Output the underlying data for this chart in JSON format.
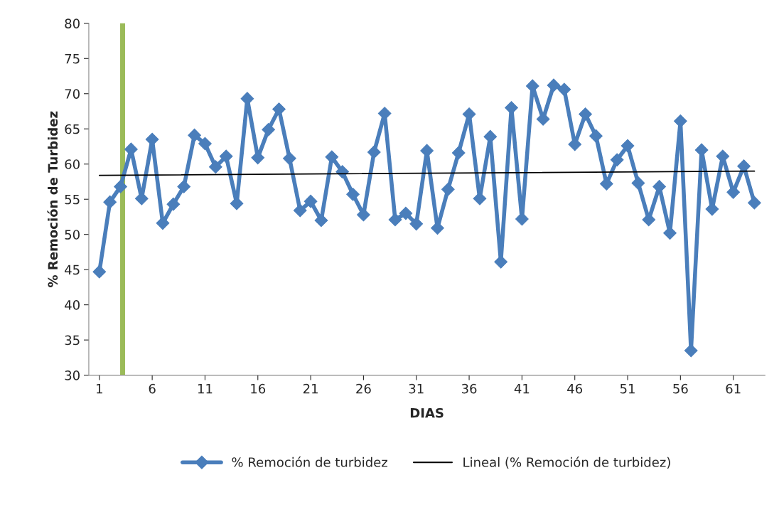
{
  "chart_data": {
    "type": "line",
    "xlabel": "DIAS",
    "ylabel": "% Remoción de Turbidez",
    "x": [
      1,
      2,
      3,
      4,
      5,
      6,
      7,
      8,
      9,
      10,
      11,
      12,
      13,
      14,
      15,
      16,
      17,
      18,
      19,
      20,
      21,
      22,
      23,
      24,
      25,
      26,
      27,
      28,
      29,
      30,
      31,
      32,
      33,
      34,
      35,
      36,
      37,
      38,
      39,
      40,
      41,
      42,
      43,
      44,
      45,
      46,
      47,
      48,
      49,
      50,
      51,
      52,
      53,
      54,
      55,
      56,
      57,
      58,
      59,
      60,
      61,
      62,
      63
    ],
    "series": [
      {
        "name": "% Remoción de turbidez",
        "color": "#4a7ebb",
        "marker": "diamond",
        "values": [
          44.7,
          54.6,
          56.8,
          62.1,
          55.1,
          63.5,
          51.6,
          54.3,
          56.8,
          64.1,
          62.9,
          59.6,
          61.1,
          54.4,
          69.3,
          60.9,
          64.9,
          67.8,
          60.8,
          53.4,
          54.7,
          52.0,
          61.0,
          58.9,
          55.7,
          52.8,
          61.7,
          67.2,
          52.1,
          53.0,
          51.5,
          61.9,
          50.9,
          56.4,
          61.6,
          67.1,
          55.1,
          63.9,
          46.1,
          68.0,
          52.2,
          71.1,
          66.4,
          71.2,
          70.6,
          62.8,
          67.1,
          64.0,
          57.2,
          60.6,
          62.6,
          57.3,
          52.1,
          56.8,
          50.2,
          66.1,
          33.5,
          62.0,
          53.6,
          61.1,
          56.0,
          59.7,
          54.5
        ]
      },
      {
        "name": "Lineal (% Remoción de turbidez)",
        "color": "#000000",
        "marker": "none",
        "x": [
          1,
          63
        ],
        "values": [
          58.4,
          59.0
        ]
      }
    ],
    "xlim": [
      0,
      64
    ],
    "xticks": [
      1,
      6,
      11,
      16,
      21,
      26,
      31,
      36,
      41,
      46,
      51,
      56,
      61
    ],
    "ylim": [
      30,
      80
    ],
    "yticks": [
      30,
      35,
      40,
      45,
      50,
      55,
      60,
      65,
      70,
      75,
      80
    ],
    "ref_lines": [
      {
        "axis": "x",
        "value": 3.2,
        "color": "#9bbb59"
      }
    ],
    "grid": false,
    "legend": "bottom"
  }
}
